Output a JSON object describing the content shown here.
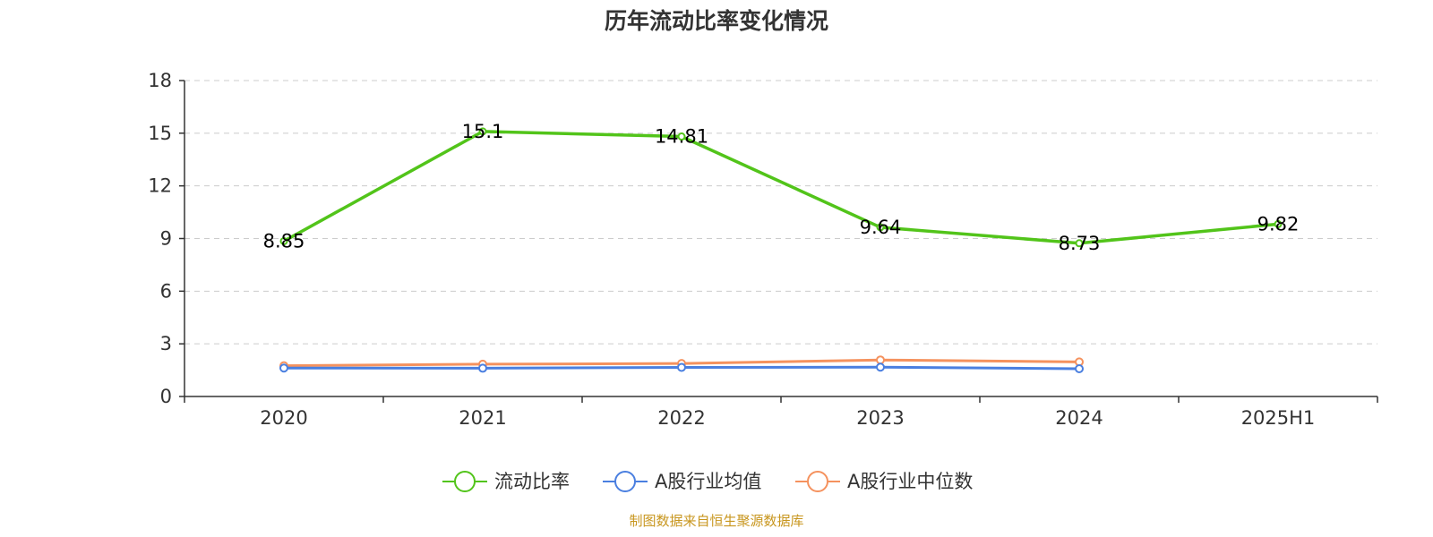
{
  "chart_data": {
    "type": "line",
    "title": "历年流动比率变化情况",
    "categories": [
      "2020",
      "2021",
      "2022",
      "2023",
      "2024",
      "2025H1"
    ],
    "ylim": [
      0,
      18
    ],
    "yticks": [
      0,
      3,
      6,
      9,
      12,
      15,
      18
    ],
    "grid": true,
    "legend_position": "bottom",
    "series": [
      {
        "name": "流动比率",
        "color": "#52c41a",
        "values": [
          8.85,
          15.1,
          14.81,
          9.64,
          8.73,
          9.82
        ],
        "labels": [
          "8.85",
          "15.1",
          "14.81",
          "9.64",
          "8.73",
          "9.82"
        ],
        "show_labels": true
      },
      {
        "name": "A股行业均值",
        "color": "#4a7fe0",
        "values": [
          1.62,
          1.61,
          1.66,
          1.67,
          1.58,
          null
        ],
        "show_labels": false
      },
      {
        "name": "A股行业中位数",
        "color": "#f5925e",
        "values": [
          1.75,
          1.84,
          1.88,
          2.08,
          1.97,
          null
        ],
        "show_labels": false
      }
    ]
  },
  "source_text": "制图数据来自恒生聚源数据库",
  "source_color": "#c8961e"
}
